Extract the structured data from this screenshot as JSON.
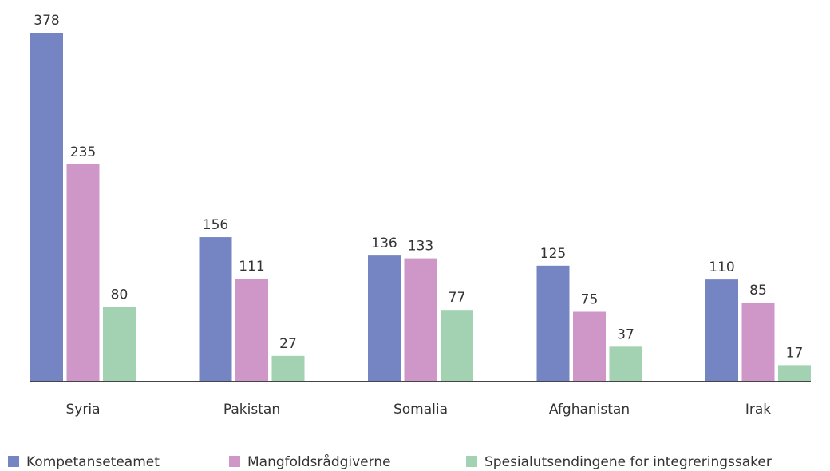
{
  "chart_data": {
    "type": "bar",
    "categories": [
      "Syria",
      "Pakistan",
      "Somalia",
      "Afghanistan",
      "Irak"
    ],
    "series": [
      {
        "name": "Kompetanseteamet",
        "color": "#7584c2",
        "values": [
          378,
          156,
          136,
          125,
          110
        ]
      },
      {
        "name": "Mangfoldsrådgiverne",
        "color": "#cf97c8",
        "values": [
          235,
          111,
          133,
          75,
          85
        ]
      },
      {
        "name": "Spesialutsendingene for integreringssaker",
        "color": "#a3d2b3",
        "values": [
          80,
          27,
          77,
          37,
          17
        ]
      }
    ],
    "legend": "bottom"
  }
}
